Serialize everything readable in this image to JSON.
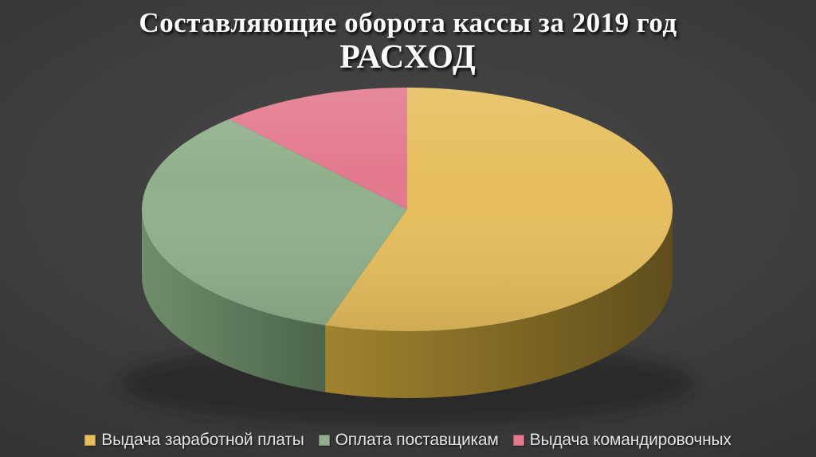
{
  "chart_data": {
    "type": "pie",
    "style": "3d",
    "title": "Составляющие оборота кассы за 2019 год",
    "subtitle": "РАСХОД",
    "legend_position": "bottom",
    "start_angle_deg": 0,
    "direction": "clockwise",
    "series": [
      {
        "label": "Выдача заработной платы",
        "percent": 55,
        "color": "#E6BE5D",
        "wall_color_light": "#A1832F",
        "wall_color_dark": "#5F4E1C"
      },
      {
        "label": "Оплата поставщикам",
        "percent": 33.3,
        "color": "#90B08B",
        "wall_color_light": "#6F8D6A",
        "wall_color_dark": "#4C654C"
      },
      {
        "label": "Выдача командировочных",
        "percent": 11.7,
        "color": "#E3798C",
        "wall_color_light": "#A85866",
        "wall_color_dark": "#8F4A58"
      }
    ]
  },
  "colors": {
    "background_center": "#474747",
    "background_edge": "#272727",
    "title_text": "#FBFBFB",
    "legend_text": "#E3E3E3"
  }
}
